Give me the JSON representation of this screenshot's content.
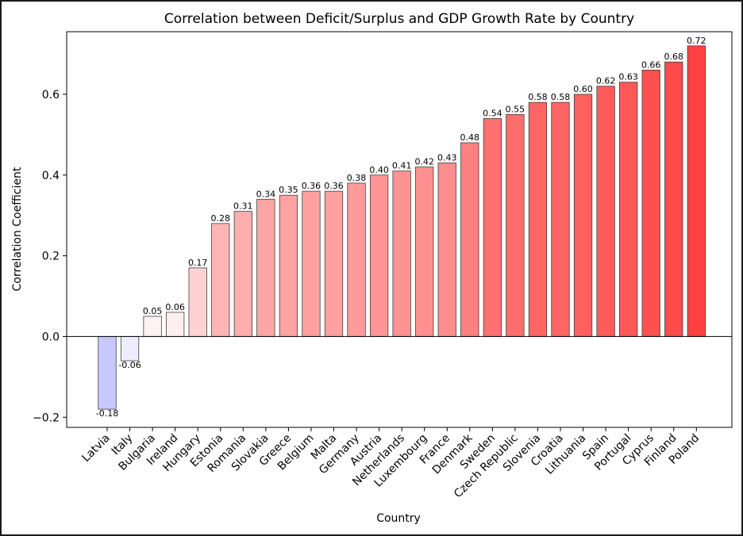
{
  "chart_data": {
    "type": "bar",
    "title": "Correlation between Deficit/Surplus and GDP Growth Rate by Country",
    "xlabel": "Country",
    "ylabel": "Correlation Coefficient",
    "categories": [
      "Latvia",
      "Italy",
      "Bulgaria",
      "Ireland",
      "Hungary",
      "Estonia",
      "Romania",
      "Slovakia",
      "Greece",
      "Belgium",
      "Malta",
      "Germany",
      "Austria",
      "Netherlands",
      "Luxembourg",
      "France",
      "Denmark",
      "Sweden",
      "Czech Republic",
      "Slovenia",
      "Croatia",
      "Lithuania",
      "Spain",
      "Portugal",
      "Cyprus",
      "Finland",
      "Poland"
    ],
    "values": [
      -0.18,
      -0.06,
      0.05,
      0.06,
      0.17,
      0.28,
      0.31,
      0.34,
      0.35,
      0.36,
      0.36,
      0.38,
      0.4,
      0.41,
      0.42,
      0.43,
      0.48,
      0.54,
      0.55,
      0.58,
      0.58,
      0.6,
      0.62,
      0.63,
      0.66,
      0.68,
      0.72
    ],
    "data_labels": [
      "-0.18",
      "-0.06",
      "0.05",
      "0.06",
      "0.17",
      "0.28",
      "0.31",
      "0.34",
      "0.35",
      "0.36",
      "0.36",
      "0.38",
      "0.40",
      "0.41",
      "0.42",
      "0.43",
      "0.48",
      "0.54",
      "0.55",
      "0.58",
      "0.58",
      "0.60",
      "0.62",
      "0.63",
      "0.66",
      "0.68",
      "0.72"
    ],
    "ylim": [
      -0.225,
      0.755
    ],
    "yticks": [
      -0.2,
      0.0,
      0.2,
      0.4,
      0.6
    ],
    "ytick_labels": [
      "−0.2",
      "0.0",
      "0.2",
      "0.4",
      "0.6"
    ],
    "colormap": {
      "negative_end": "#c8c8ff",
      "zero": "#ffffff",
      "positive_end": "#ff4040"
    },
    "zero_line": true,
    "grid": false,
    "legend": "none"
  }
}
